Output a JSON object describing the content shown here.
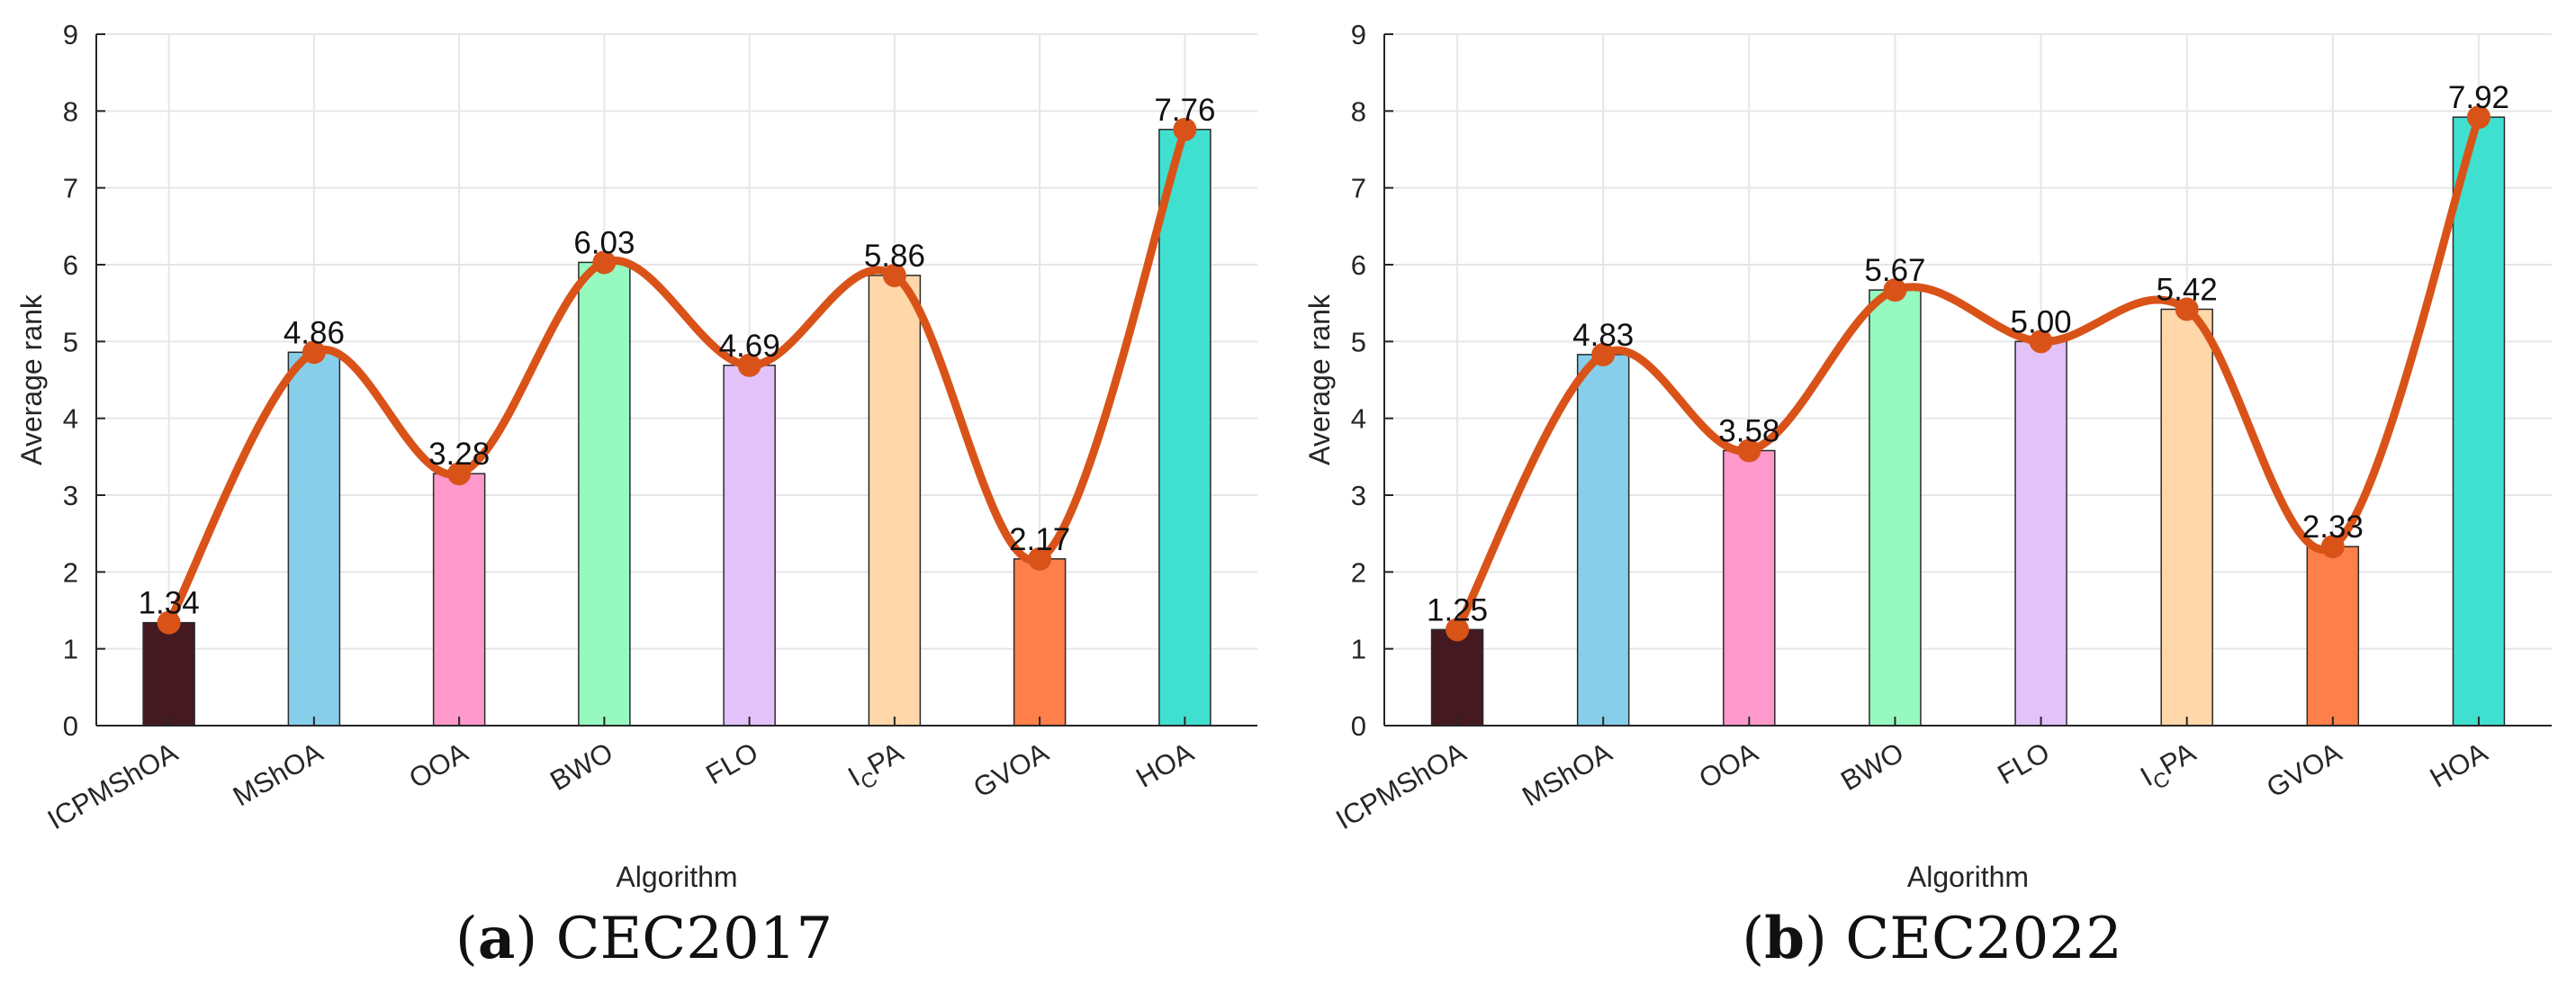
{
  "panels": [
    {
      "caption_letter": "a",
      "caption_title": "CEC2017",
      "chart_data": {
        "type": "bar",
        "xlabel": "Algorithm",
        "ylabel": "Average rank",
        "ylim": [
          0,
          9
        ],
        "yticks": [
          "0",
          "1",
          "2",
          "3",
          "4",
          "5",
          "6",
          "7",
          "8",
          "9"
        ],
        "grid": true,
        "categories": [
          "ICPMShOA",
          "MShOA",
          "OOA",
          "BWO",
          "FLO",
          "I_C PA",
          "GVOA",
          "HOA"
        ],
        "values": [
          1.34,
          4.86,
          3.28,
          6.03,
          4.69,
          5.86,
          2.17,
          7.76
        ],
        "value_labels": [
          "1.34",
          "4.86",
          "3.28",
          "6.03",
          "4.69",
          "5.86",
          "2.17",
          "7.76"
        ],
        "overlay": "smooth line with markers through bar values"
      }
    },
    {
      "caption_letter": "b",
      "caption_title": "CEC2022",
      "chart_data": {
        "type": "bar",
        "xlabel": "Algorithm",
        "ylabel": "Average rank",
        "ylim": [
          0,
          9
        ],
        "yticks": [
          "0",
          "1",
          "2",
          "3",
          "4",
          "5",
          "6",
          "7",
          "8",
          "9"
        ],
        "grid": true,
        "categories": [
          "ICPMShOA",
          "MShOA",
          "OOA",
          "BWO",
          "FLO",
          "I_C PA",
          "GVOA",
          "HOA"
        ],
        "values": [
          1.25,
          4.83,
          3.58,
          5.67,
          5.0,
          5.42,
          2.33,
          7.92
        ],
        "value_labels": [
          "1.25",
          "4.83",
          "3.58",
          "5.67",
          "5.00",
          "5.42",
          "2.33",
          "7.92"
        ],
        "overlay": "smooth line with markers through bar values"
      }
    }
  ],
  "colors": {
    "bars": [
      "#441a20",
      "#87ceeb",
      "#ff99cc",
      "#96fac0",
      "#e3c2fa",
      "#ffd7a8",
      "#ff7f4a",
      "#40e0d0"
    ],
    "line": "#d95319",
    "grid": "#e6e6e6",
    "axis": "#262626"
  }
}
